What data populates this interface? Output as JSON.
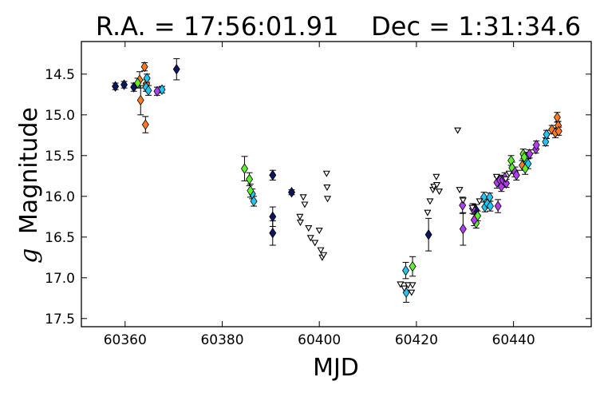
{
  "chart_data": {
    "type": "scatter",
    "title": "R.A. = 17:56:01.91    Dec = 1:31:34.6",
    "xlabel": "MJD",
    "ylabel_symbol": "g",
    "ylabel_text": "Magnitude",
    "xlim": [
      60351,
      60456
    ],
    "ylim": [
      17.6,
      14.1
    ],
    "y_inverted": true,
    "grid": false,
    "x_ticks": [
      60360,
      60380,
      60400,
      60420,
      60440
    ],
    "y_ticks": [
      14.5,
      15.0,
      15.5,
      16.0,
      16.5,
      17.0,
      17.5
    ],
    "x_tick_labels": [
      "60360",
      "60380",
      "60400",
      "60420",
      "60440"
    ],
    "y_tick_labels": [
      "14.5",
      "15.0",
      "15.5",
      "16.0",
      "16.5",
      "17.0",
      "17.5"
    ],
    "colors": {
      "navy": "#0c1660",
      "orange": "#ff7a20",
      "cyan": "#23c4f0",
      "green": "#5ef02c",
      "purple": "#b23cf0",
      "limit_fill": "#ffffff",
      "edge": "#000000"
    },
    "series": [
      {
        "color_key": "navy",
        "marker": "diamond",
        "points": [
          {
            "x": 60358.0,
            "y": 14.65,
            "err": 0.04
          },
          {
            "x": 60359.8,
            "y": 14.63,
            "err": 0.04
          },
          {
            "x": 60361.8,
            "y": 14.66,
            "err": 0.05
          },
          {
            "x": 60370.6,
            "y": 14.44,
            "err": 0.13
          },
          {
            "x": 60390.4,
            "y": 15.74,
            "err": 0.06
          },
          {
            "x": 60390.4,
            "y": 16.25,
            "err": 0.12
          },
          {
            "x": 60390.4,
            "y": 16.45,
            "err": 0.15
          },
          {
            "x": 60394.3,
            "y": 15.95,
            "err": 0.03
          },
          {
            "x": 60422.5,
            "y": 16.47,
            "err": 0.2
          },
          {
            "x": 60432.3,
            "y": 16.17,
            "err": 0.07
          }
        ]
      },
      {
        "color_key": "orange",
        "marker": "diamond",
        "points": [
          {
            "x": 60363.0,
            "y": 14.57,
            "err": 0.1
          },
          {
            "x": 60363.2,
            "y": 14.82,
            "err": 0.18
          },
          {
            "x": 60364.0,
            "y": 14.41,
            "err": 0.05
          },
          {
            "x": 60364.2,
            "y": 15.12,
            "err": 0.1
          },
          {
            "x": 60364.4,
            "y": 14.62,
            "err": 0.05
          },
          {
            "x": 60441.8,
            "y": 15.62,
            "err": 0.06
          },
          {
            "x": 60447.9,
            "y": 15.18,
            "err": 0.05
          },
          {
            "x": 60448.6,
            "y": 15.22,
            "err": 0.06
          },
          {
            "x": 60449.0,
            "y": 15.03,
            "err": 0.06
          },
          {
            "x": 60449.2,
            "y": 15.13,
            "err": 0.05
          },
          {
            "x": 60449.3,
            "y": 15.2,
            "err": 0.05
          }
        ]
      },
      {
        "color_key": "cyan",
        "marker": "diamond",
        "points": [
          {
            "x": 60364.3,
            "y": 14.66,
            "err": 0.05
          },
          {
            "x": 60364.5,
            "y": 14.55,
            "err": 0.05
          },
          {
            "x": 60364.8,
            "y": 14.7,
            "err": 0.06
          },
          {
            "x": 60367.6,
            "y": 14.69,
            "err": 0.04
          },
          {
            "x": 60386.2,
            "y": 15.97,
            "err": 0.06
          },
          {
            "x": 60386.5,
            "y": 16.06,
            "err": 0.06
          },
          {
            "x": 60417.8,
            "y": 16.91,
            "err": 0.1
          },
          {
            "x": 60417.9,
            "y": 17.18,
            "err": 0.12
          },
          {
            "x": 60433.9,
            "y": 16.01,
            "err": 0.06
          },
          {
            "x": 60434.1,
            "y": 16.13,
            "err": 0.06
          },
          {
            "x": 60434.6,
            "y": 16.09,
            "err": 0.05
          },
          {
            "x": 60435.1,
            "y": 16.01,
            "err": 0.05
          },
          {
            "x": 60435.2,
            "y": 16.12,
            "err": 0.06
          },
          {
            "x": 60442.5,
            "y": 15.52,
            "err": 0.05
          },
          {
            "x": 60442.6,
            "y": 15.57,
            "err": 0.05
          },
          {
            "x": 60443.0,
            "y": 15.6,
            "err": 0.06
          },
          {
            "x": 60446.6,
            "y": 15.33,
            "err": 0.05
          },
          {
            "x": 60446.8,
            "y": 15.24,
            "err": 0.05
          }
        ]
      },
      {
        "color_key": "green",
        "marker": "diamond",
        "points": [
          {
            "x": 60362.6,
            "y": 14.61,
            "err": 0.06
          },
          {
            "x": 60384.6,
            "y": 15.66,
            "err": 0.15
          },
          {
            "x": 60385.6,
            "y": 15.79,
            "err": 0.08
          },
          {
            "x": 60385.8,
            "y": 15.93,
            "err": 0.08
          },
          {
            "x": 60419.2,
            "y": 16.86,
            "err": 0.12
          },
          {
            "x": 60432.3,
            "y": 16.33,
            "err": 0.06
          },
          {
            "x": 60432.6,
            "y": 16.24,
            "err": 0.06
          },
          {
            "x": 60439.5,
            "y": 15.56,
            "err": 0.06
          },
          {
            "x": 60439.7,
            "y": 15.65,
            "err": 0.07
          },
          {
            "x": 60442.0,
            "y": 15.48,
            "err": 0.06
          },
          {
            "x": 60442.2,
            "y": 15.52,
            "err": 0.06
          },
          {
            "x": 60442.4,
            "y": 15.66,
            "err": 0.07
          }
        ]
      },
      {
        "color_key": "purple",
        "marker": "diamond",
        "points": [
          {
            "x": 60366.6,
            "y": 14.71,
            "err": 0.05
          },
          {
            "x": 60429.5,
            "y": 16.11,
            "err": 0.1
          },
          {
            "x": 60429.6,
            "y": 16.4,
            "err": 0.2
          },
          {
            "x": 60431.6,
            "y": 16.15,
            "err": 0.06
          },
          {
            "x": 60431.9,
            "y": 16.29,
            "err": 0.07
          },
          {
            "x": 60436.6,
            "y": 15.83,
            "err": 0.07
          },
          {
            "x": 60436.8,
            "y": 16.12,
            "err": 0.08
          },
          {
            "x": 60437.2,
            "y": 15.8,
            "err": 0.06
          },
          {
            "x": 60437.5,
            "y": 15.88,
            "err": 0.06
          },
          {
            "x": 60437.8,
            "y": 15.8,
            "err": 0.05
          },
          {
            "x": 60438.2,
            "y": 15.77,
            "err": 0.06
          },
          {
            "x": 60438.5,
            "y": 15.84,
            "err": 0.05
          },
          {
            "x": 60440.3,
            "y": 15.7,
            "err": 0.06
          },
          {
            "x": 60440.6,
            "y": 15.74,
            "err": 0.06
          },
          {
            "x": 60443.3,
            "y": 15.48,
            "err": 0.05
          },
          {
            "x": 60444.6,
            "y": 15.42,
            "err": 0.05
          },
          {
            "x": 60444.7,
            "y": 15.37,
            "err": 0.05
          }
        ]
      },
      {
        "color_key": "limit_fill",
        "marker": "triangle-down",
        "upper_limits": true,
        "points": [
          {
            "x": 60396.0,
            "y": 16.25
          },
          {
            "x": 60396.1,
            "y": 16.32
          },
          {
            "x": 60396.7,
            "y": 16.01
          },
          {
            "x": 60397.0,
            "y": 16.1
          },
          {
            "x": 60397.8,
            "y": 16.39
          },
          {
            "x": 60398.2,
            "y": 16.51
          },
          {
            "x": 60399.1,
            "y": 16.57
          },
          {
            "x": 60400.0,
            "y": 16.42
          },
          {
            "x": 60400.3,
            "y": 16.66
          },
          {
            "x": 60400.6,
            "y": 16.75
          },
          {
            "x": 60400.9,
            "y": 16.72
          },
          {
            "x": 60401.5,
            "y": 15.72
          },
          {
            "x": 60401.6,
            "y": 15.89
          },
          {
            "x": 60401.7,
            "y": 16.03
          },
          {
            "x": 60416.7,
            "y": 17.08
          },
          {
            "x": 60417.5,
            "y": 17.13
          },
          {
            "x": 60418.3,
            "y": 17.09
          },
          {
            "x": 60419.0,
            "y": 17.18
          },
          {
            "x": 60419.2,
            "y": 17.09
          },
          {
            "x": 60422.3,
            "y": 16.2
          },
          {
            "x": 60422.8,
            "y": 16.06
          },
          {
            "x": 60423.4,
            "y": 15.92
          },
          {
            "x": 60423.6,
            "y": 15.88
          },
          {
            "x": 60424.1,
            "y": 15.76
          },
          {
            "x": 60424.2,
            "y": 15.86
          },
          {
            "x": 60424.7,
            "y": 15.94
          },
          {
            "x": 60428.5,
            "y": 15.19
          },
          {
            "x": 60428.9,
            "y": 15.92
          },
          {
            "x": 60429.6,
            "y": 16.05
          },
          {
            "x": 60431.5,
            "y": 16.14
          },
          {
            "x": 60433.0,
            "y": 16.06
          },
          {
            "x": 60436.5,
            "y": 15.76
          },
          {
            "x": 60438.4,
            "y": 15.79
          },
          {
            "x": 60439.1,
            "y": 15.72
          }
        ]
      }
    ]
  }
}
